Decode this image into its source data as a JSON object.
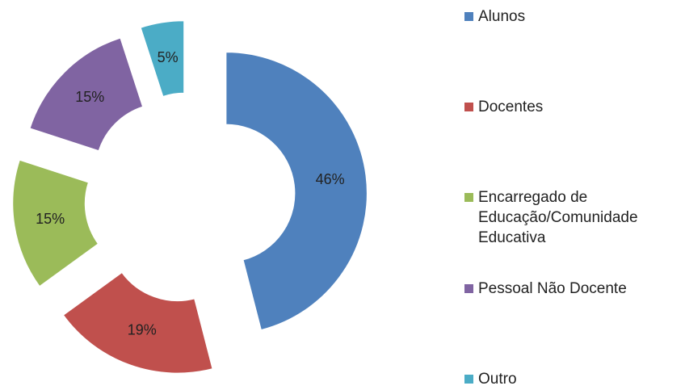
{
  "chart_data": {
    "type": "donut",
    "categories": [
      "Alunos",
      "Docentes",
      "Encarregado de Educação/Comunidade Educativa",
      "Pessoal Não Docente",
      "Outro"
    ],
    "values": [
      46,
      19,
      15,
      15,
      5
    ],
    "value_labels": [
      "46%",
      "19%",
      "15%",
      "15%",
      "5%"
    ],
    "colors": [
      "#4f81bd",
      "#c0504d",
      "#9bbb59",
      "#8064a2",
      "#4bacc6"
    ],
    "legend": "right"
  }
}
